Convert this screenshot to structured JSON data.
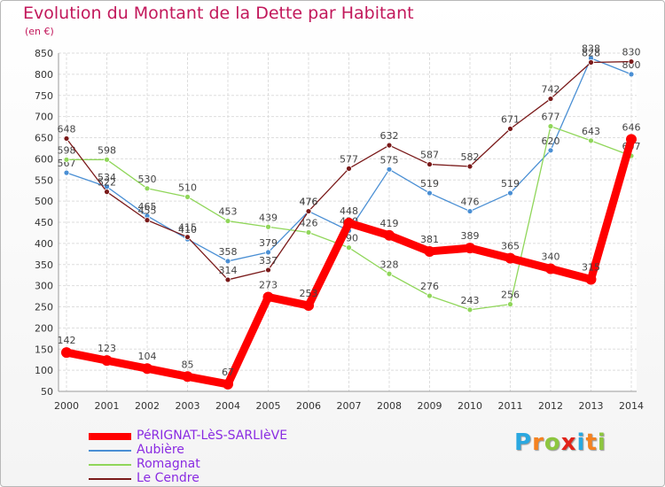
{
  "chart_data": {
    "type": "line",
    "title": "Evolution du Montant de la Dette par Habitant",
    "subtitle": "(en €)",
    "xlabel": "",
    "ylabel": "",
    "x": [
      "2000",
      "2001",
      "2002",
      "2003",
      "2004",
      "2005",
      "2006",
      "2007",
      "2008",
      "2009",
      "2010",
      "2011",
      "2012",
      "2013",
      "2014"
    ],
    "ylim": [
      50,
      850
    ],
    "yticks": [
      50,
      100,
      150,
      200,
      250,
      300,
      350,
      400,
      450,
      500,
      550,
      600,
      650,
      700,
      750,
      800,
      850
    ],
    "grid": true,
    "legend_position": "bottom-left",
    "series": [
      {
        "name": "PéRIGNAT-LèS-SARLIèVE",
        "color": "#ff0000",
        "values": [
          142,
          123,
          104,
          85,
          67,
          273,
          253,
          448,
          419,
          381,
          389,
          365,
          340,
          315,
          646
        ]
      },
      {
        "name": "Aubière",
        "color": "#4a8fd4",
        "values": [
          567,
          534,
          465,
          410,
          358,
          379,
          476,
          430,
          575,
          519,
          476,
          519,
          620,
          838,
          800
        ]
      },
      {
        "name": "Romagnat",
        "color": "#90d65a",
        "values": [
          598,
          598,
          530,
          510,
          453,
          439,
          426,
          390,
          328,
          276,
          243,
          256,
          677,
          643,
          607
        ]
      },
      {
        "name": "Le Cendre",
        "color": "#7a1a1a",
        "values": [
          648,
          522,
          455,
          415,
          314,
          337,
          476,
          577,
          632,
          587,
          582,
          671,
          742,
          828,
          830
        ]
      }
    ]
  },
  "brand": {
    "letters": [
      "P",
      "r",
      "o",
      "x",
      "i",
      "t",
      "i"
    ],
    "colors": [
      "#2aa8e0",
      "#f58220",
      "#8dc63f",
      "#e2231a",
      "#2aa8e0",
      "#f58220",
      "#8dc63f"
    ]
  }
}
